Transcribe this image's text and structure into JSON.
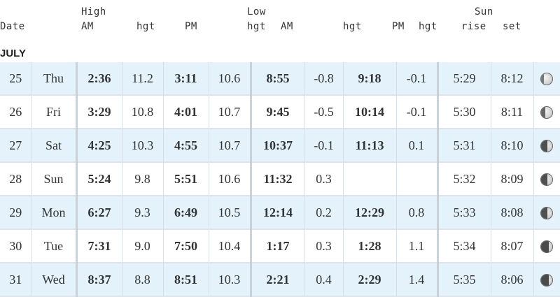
{
  "header": {
    "date": "Date",
    "high": "High",
    "am1": "AM",
    "hgt1": "hgt",
    "pm1": "PM",
    "low": "Low",
    "hgt2": "hgt",
    "am2": "AM",
    "hgt3": "hgt",
    "pm2": "PM",
    "hgt4": "hgt",
    "sun": "Sun",
    "rise": "rise",
    "set": "set"
  },
  "month": "JULY",
  "rows": [
    {
      "date": "25",
      "day": "Thu",
      "high_am": "2:36",
      "high_am_hgt": "11.2",
      "high_pm": "3:11",
      "high_pm_hgt": "10.6",
      "low_am": "8:55",
      "low_am_hgt": "-0.8",
      "low_pm": "9:18",
      "low_pm_hgt": "-0.1",
      "sunrise": "5:29",
      "sunset": "8:12",
      "moon": "waning-gibbous-icon"
    },
    {
      "date": "26",
      "day": "Fri",
      "high_am": "3:29",
      "high_am_hgt": "10.8",
      "high_pm": "4:01",
      "high_pm_hgt": "10.7",
      "low_am": "9:45",
      "low_am_hgt": "-0.5",
      "low_pm": "10:14",
      "low_pm_hgt": "-0.1",
      "sunrise": "5:30",
      "sunset": "8:11",
      "moon": "waning-gibbous-icon"
    },
    {
      "date": "27",
      "day": "Sat",
      "high_am": "4:25",
      "high_am_hgt": "10.3",
      "high_pm": "4:55",
      "high_pm_hgt": "10.7",
      "low_am": "10:37",
      "low_am_hgt": "-0.1",
      "low_pm": "11:13",
      "low_pm_hgt": "0.1",
      "sunrise": "5:31",
      "sunset": "8:10",
      "moon": "last-quarter-moon-icon"
    },
    {
      "date": "28",
      "day": "Sun",
      "high_am": "5:24",
      "high_am_hgt": "9.8",
      "high_pm": "5:51",
      "high_pm_hgt": "10.6",
      "low_am": "11:32",
      "low_am_hgt": "0.3",
      "low_pm": "",
      "low_pm_hgt": "",
      "sunrise": "5:32",
      "sunset": "8:09",
      "moon": "last-quarter-moon-icon"
    },
    {
      "date": "29",
      "day": "Mon",
      "high_am": "6:27",
      "high_am_hgt": "9.3",
      "high_pm": "6:49",
      "high_pm_hgt": "10.5",
      "low_am": "12:14",
      "low_am_hgt": "0.2",
      "low_pm": "12:29",
      "low_pm_hgt": "0.8",
      "sunrise": "5:33",
      "sunset": "8:08",
      "moon": "last-quarter-moon-icon"
    },
    {
      "date": "30",
      "day": "Tue",
      "high_am": "7:31",
      "high_am_hgt": "9.0",
      "high_pm": "7:50",
      "high_pm_hgt": "10.4",
      "low_am": "1:17",
      "low_am_hgt": "0.3",
      "low_pm": "1:28",
      "low_pm_hgt": "1.1",
      "sunrise": "5:34",
      "sunset": "8:07",
      "moon": "waning-crescent-icon"
    },
    {
      "date": "31",
      "day": "Wed",
      "high_am": "8:37",
      "high_am_hgt": "8.8",
      "high_pm": "8:51",
      "high_pm_hgt": "10.3",
      "low_am": "2:21",
      "low_am_hgt": "0.4",
      "low_pm": "2:29",
      "low_pm_hgt": "1.4",
      "sunrise": "5:35",
      "sunset": "8:06",
      "moon": "waning-crescent-icon"
    }
  ]
}
